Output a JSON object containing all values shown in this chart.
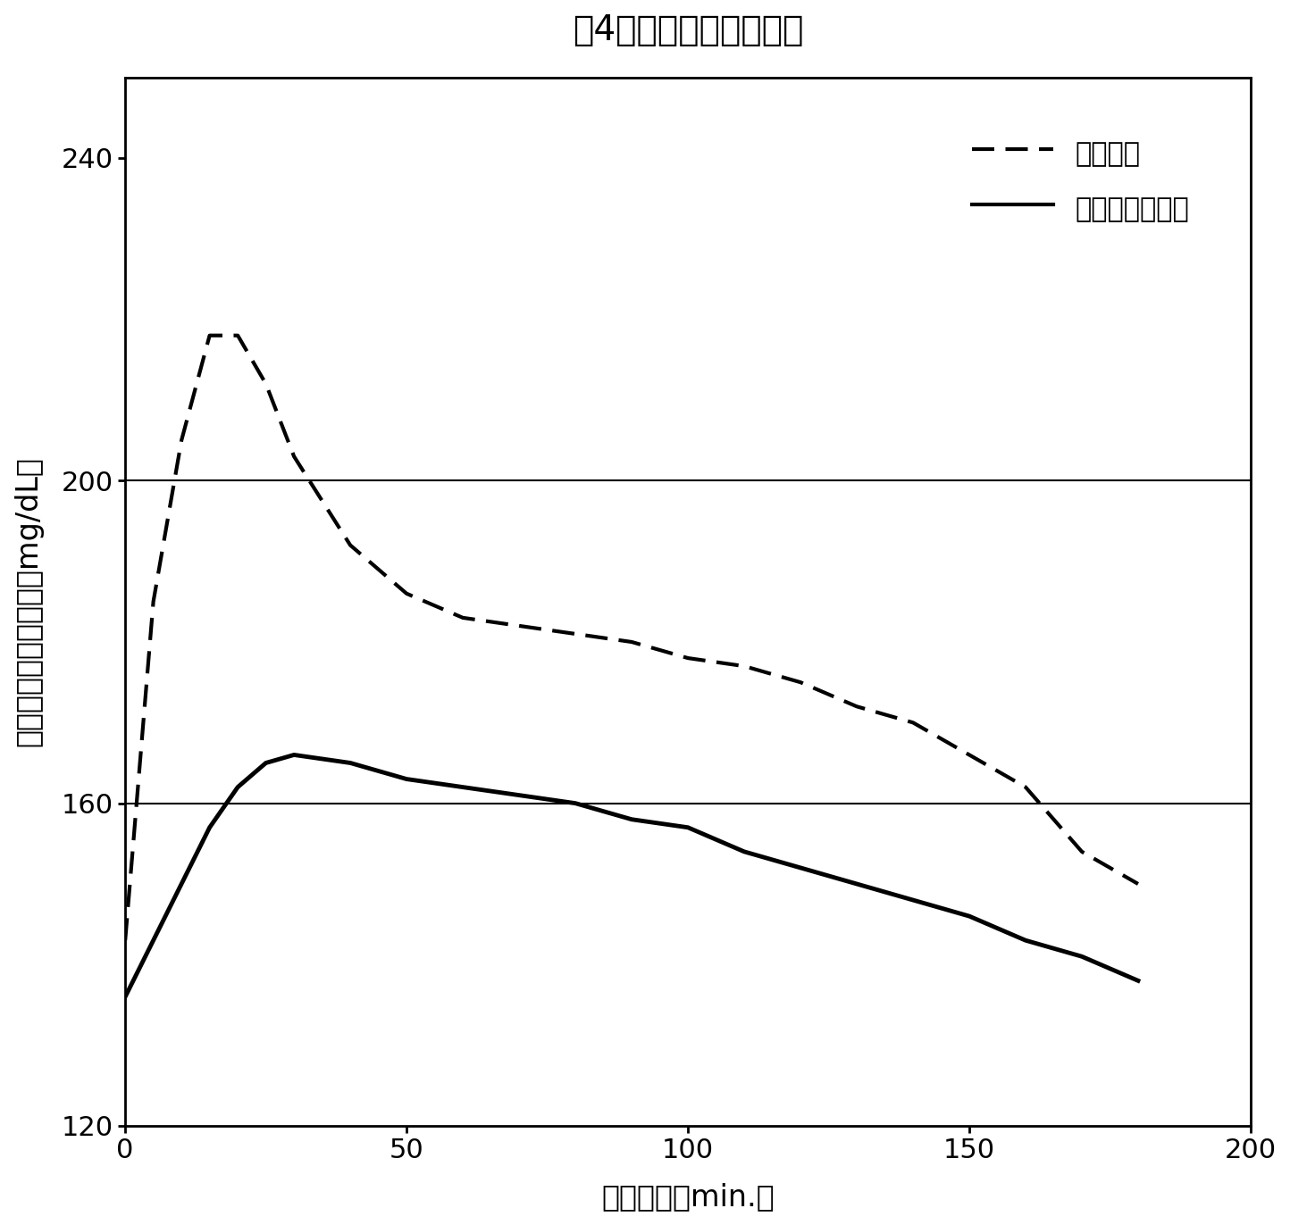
{
  "title": "図4　ラット糖負荷試験",
  "xlabel": "経過時間（min.）",
  "ylabel": "血中グルコース濃度（mg/dL）",
  "legend_water": "水投与群",
  "legend_reishi": "鹿角霊芝投与群",
  "xlim": [
    0,
    200
  ],
  "ylim": [
    120,
    250
  ],
  "xticks": [
    0,
    50,
    100,
    150,
    200
  ],
  "yticks": [
    120,
    160,
    200,
    240
  ],
  "hlines": [
    160,
    200
  ],
  "water_x": [
    0,
    5,
    10,
    15,
    20,
    25,
    30,
    40,
    50,
    60,
    70,
    80,
    90,
    100,
    110,
    120,
    130,
    140,
    150,
    160,
    170,
    180
  ],
  "water_y": [
    143,
    185,
    205,
    218,
    218,
    212,
    203,
    192,
    186,
    183,
    182,
    181,
    180,
    178,
    177,
    175,
    172,
    170,
    166,
    162,
    154,
    150
  ],
  "reishi_x": [
    0,
    5,
    10,
    15,
    20,
    25,
    30,
    40,
    50,
    60,
    70,
    80,
    90,
    100,
    110,
    120,
    130,
    140,
    150,
    160,
    170,
    180
  ],
  "reishi_y": [
    136,
    143,
    150,
    157,
    162,
    165,
    166,
    165,
    163,
    162,
    161,
    160,
    158,
    157,
    154,
    152,
    150,
    148,
    146,
    143,
    141,
    138
  ],
  "background_color": "#ffffff",
  "line_color": "#000000",
  "title_fontsize": 28,
  "label_fontsize": 24,
  "tick_fontsize": 22,
  "legend_fontsize": 22
}
